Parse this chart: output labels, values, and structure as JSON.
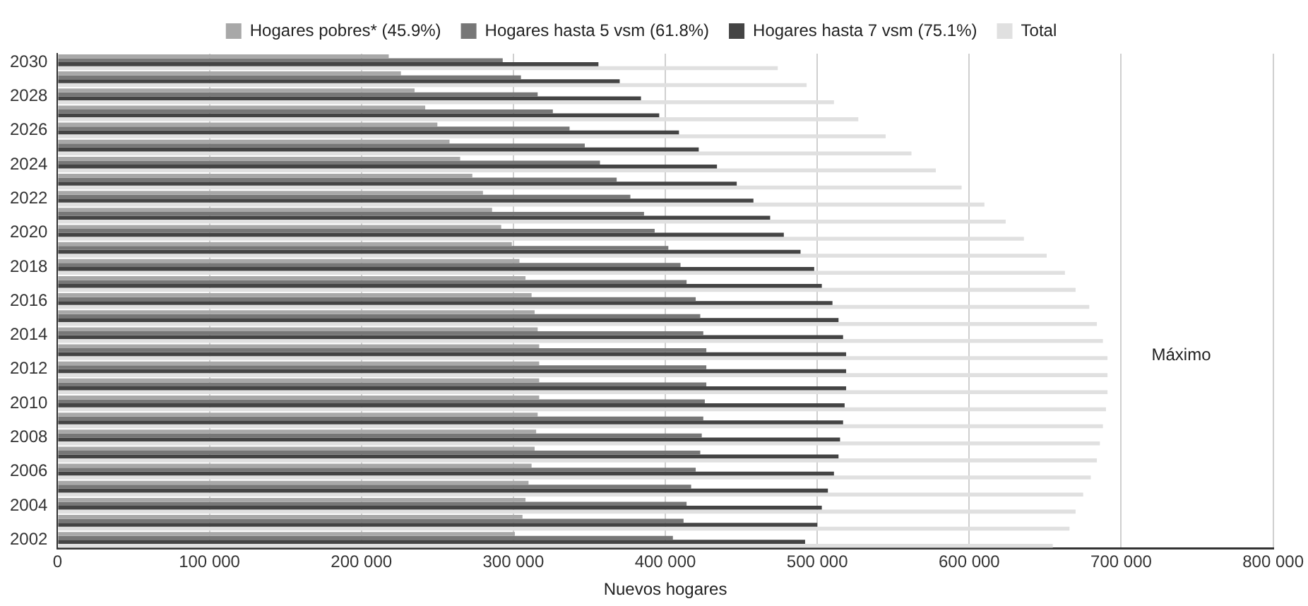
{
  "chart_data": {
    "type": "bar",
    "orientation": "horizontal",
    "xlabel": "Nuevos hogares",
    "categories": [
      "2030",
      null,
      "2028",
      null,
      "2026",
      null,
      "2024",
      null,
      "2022",
      null,
      "2020",
      null,
      "2018",
      null,
      "2016",
      null,
      "2014",
      null,
      "2012",
      null,
      "2010",
      null,
      "2008",
      null,
      "2006",
      null,
      "2004",
      null,
      "2002"
    ],
    "series": [
      {
        "name": "Hogares pobres* (45.9%)",
        "color": "#a8a8a8",
        "values": [
          218000,
          226000,
          235000,
          242000,
          250000,
          258000,
          265000,
          273000,
          280000,
          286000,
          292000,
          299000,
          304000,
          308000,
          312000,
          314000,
          316000,
          317000,
          317000,
          317000,
          317000,
          316000,
          315000,
          314000,
          312000,
          310000,
          308000,
          306000,
          301000
        ]
      },
      {
        "name": "Hogares hasta 5 vsm (61.8%)",
        "color": "#777777",
        "values": [
          293000,
          305000,
          316000,
          326000,
          337000,
          347000,
          357000,
          368000,
          377000,
          386000,
          393000,
          402000,
          410000,
          414000,
          420000,
          423000,
          425000,
          427000,
          427000,
          427000,
          426000,
          425000,
          424000,
          423000,
          420000,
          417000,
          414000,
          412000,
          405000
        ]
      },
      {
        "name": "Hogares hasta 7 vsm (75.1%)",
        "color": "#444444",
        "values": [
          356000,
          370000,
          384000,
          396000,
          409000,
          422000,
          434000,
          447000,
          458000,
          469000,
          478000,
          489000,
          498000,
          503000,
          510000,
          514000,
          517000,
          519000,
          519000,
          519000,
          518000,
          517000,
          515000,
          514000,
          511000,
          507000,
          503000,
          500000,
          492000
        ]
      },
      {
        "name": "Total",
        "color": "#e0e0e0",
        "values": [
          474000,
          493000,
          511000,
          527000,
          545000,
          562000,
          578000,
          595000,
          610000,
          624000,
          636000,
          651000,
          663000,
          670000,
          679000,
          684000,
          688000,
          691000,
          691000,
          691000,
          690000,
          688000,
          686000,
          684000,
          680000,
          675000,
          670000,
          666000,
          655000
        ]
      }
    ],
    "xlim": [
      0,
      800000
    ],
    "xticks": [
      0,
      {
        "value": 100000,
        "label": "100 000"
      },
      {
        "value": 200000,
        "label": "200 000"
      },
      {
        "value": 300000,
        "label": "300 000"
      },
      {
        "value": 400000,
        "label": "400 000"
      },
      {
        "value": 500000,
        "label": "500 000"
      },
      {
        "value": 600000,
        "label": "600 000"
      },
      {
        "value": 700000,
        "label": "700 000"
      },
      {
        "value": 800000,
        "label": "800 000"
      }
    ],
    "grid": "x",
    "legend": "top",
    "annotations": [
      "Máximo"
    ]
  }
}
